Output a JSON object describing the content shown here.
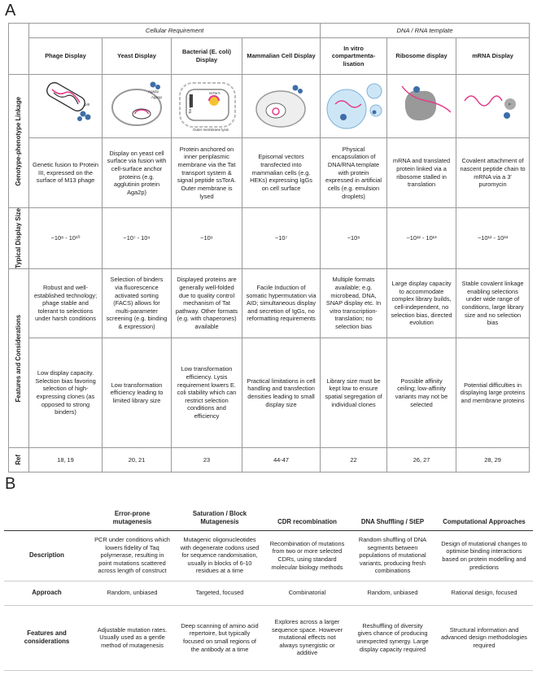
{
  "panel_a": {
    "label": "A",
    "groups": [
      "Cellular Requirement",
      "DNA / RNA template"
    ],
    "row_labels": [
      "Genotype-phenotype Linkage",
      "Typical Display Size",
      "Features and Considerations",
      "Ref"
    ],
    "columns": [
      {
        "name": "Phage Display",
        "image_labels": [
          "pIII"
        ],
        "linkage": "Genetic fusion to Protein III, expressed on the surface of M13 phage",
        "size": "~10⁸ - 10¹⁰",
        "features": [
          "Robust and well-established technology; phage stable and tolerant to selections under harsh conditions",
          "Low display capacity. Selection bias favoring selection of high-expressing clones (as opposed to strong binders)"
        ],
        "ref": "18, 19"
      },
      {
        "name": "Yeast Display",
        "image_labels": [
          "Aga2p",
          "Aga1p"
        ],
        "linkage": "Display on yeast cell surface via fusion with cell-surface anchor proteins (e.g. agglutinin protein Aga2p)",
        "size": "~10⁷ - 10⁹",
        "features": [
          "Selection of binders via fluorescence activated sorting (FACS) allows for multi-parameter screening (e.g. binding & expression)",
          "Low transformation efficiency leading to limited library size"
        ],
        "ref": "20, 21"
      },
      {
        "name": "Bacterial (E. coli) Display",
        "image_labels": [
          "Tat complex",
          "ssTorA",
          "Outer membrane lysis"
        ],
        "linkage": "Protein anchored on inner periplasmic membrane via the Tat transport system & signal peptide ssTorA. Outer membrane is lysed",
        "size": "~10⁹",
        "features": [
          "Displayed proteins are generally well-folded due to quality control mechanism of Tat pathway. Other formats (e.g. with chaperones) available",
          "Low transformation efficiency. Lysis requirement lowers E. coli stability which can restrict selection conditions and efficiency"
        ],
        "ref": "23"
      },
      {
        "name": "Mammalian Cell Display",
        "image_labels": [],
        "linkage": "Episomal vectors transfected into mammalian cells (e.g. HEKs) expressing IgGs on cell surface",
        "size": "~10⁷",
        "features": [
          "Facile Induction of somatic hypermutation via AID; simultaneous display and secretion of IgGs, no reformatting requirements",
          "Practical limitations in cell handling and transfection densities leading to small display size"
        ],
        "ref": "44-47"
      },
      {
        "name": "In vitro compartmenta-lisation",
        "image_labels": [],
        "linkage": "Physical encapsulation of DNA/RNA template with protein expressed in artificial cells (e.g. emulsion droplets)",
        "size": "~10⁸",
        "features": [
          "Multiple formats available; e.g. microbead, DNA, SNAP display etc. In vitro transcription-translation; no selection bias",
          "Library size must be kept low to ensure spatial segregation of individual clones"
        ],
        "ref": "22"
      },
      {
        "name": "Ribosome display",
        "image_labels": [],
        "linkage": "mRNA and translated protein linked via a ribosome stalled in translation",
        "size": "~10¹² - 10¹³",
        "features": [
          "Large display capacity to accommodate complex library builds, cell-independent, no selection bias, directed evolution",
          "Possible affinity ceiling; low-affinity variants may not be selected"
        ],
        "ref": "26, 27"
      },
      {
        "name": "mRNA Display",
        "image_labels": [
          "P"
        ],
        "linkage": "Covalent attachment of nascent peptide chain to mRNA via a 3' puromycin",
        "size": "~10¹² - 10¹³",
        "features": [
          "Stable covalent linkage enabling selections under wide range of conditions, large library size and no selection bias",
          "Potential difficulties in displaying large proteins and membrane proteins"
        ],
        "ref": "28, 29"
      }
    ]
  },
  "panel_b": {
    "label": "B",
    "headers": [
      "Error-prone mutagenesis",
      "Saturation / Block Mutagenesis",
      "CDR recombination",
      "DNA Shuffling / StEP",
      "Computational Approaches"
    ],
    "rows": [
      {
        "label": "Description",
        "cells": [
          "PCR under conditions which lowers fidelity of Taq polymerase, resulting in point mutations scattered across length of construct",
          "Mutagenic oligonucleotides with degenerate codons used for sequence randomisation, usually in blocks of 6-10 residues at a time",
          "Recombination of mutations from two or more selected CDRs, using standard molecular biology methods",
          "Random shuffling of DNA segments between populations of mutational variants, producing fresh combinations",
          "Design of mutational changes to optimise binding interactions based on protein modelling and predictions"
        ]
      },
      {
        "label": "Approach",
        "cells": [
          "Random, unbiased",
          "Targeted, focused",
          "Combinatorial",
          "Random, unbiased",
          "Rational design, focused"
        ]
      },
      {
        "label": "Features and considerations",
        "cells": [
          "Adjustable mutation rates. Usually used as a gentle method of mutagenesis",
          "Deep scanning of amino acid repertoire, but typically focused on small regions of the antibody at a time",
          "Explores across a larger sequence space. However mutational effects not always synergistic or additive",
          "Reshuffling of diversity gives chance of producing unexpected synergy. Large display capacity required",
          "Structural information and advanced design methodologies required"
        ]
      }
    ]
  }
}
